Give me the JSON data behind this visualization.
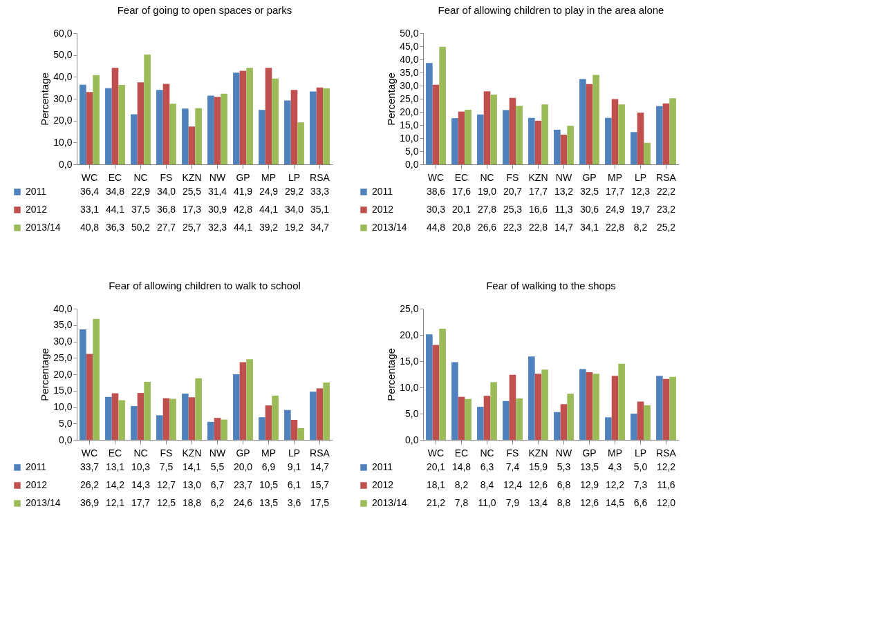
{
  "chart_data": [
    {
      "type": "bar",
      "title": "Fear of going to open spaces or parks",
      "ylabel": "Percentage",
      "categories": [
        "WC",
        "EC",
        "NC",
        "FS",
        "KZN",
        "NW",
        "GP",
        "MP",
        "LP",
        "RSA"
      ],
      "ylim": [
        0,
        60
      ],
      "yticks": [
        {
          "value": 0,
          "label": "0,0"
        },
        {
          "value": 10,
          "label": "10,0"
        },
        {
          "value": 20,
          "label": "20,0"
        },
        {
          "value": 30,
          "label": "30,0"
        },
        {
          "value": 40,
          "label": "40,0"
        },
        {
          "value": 50,
          "label": "50,0"
        },
        {
          "value": 60,
          "label": "60,0"
        }
      ],
      "grid": false,
      "legend": "bottom",
      "series": [
        {
          "name": "2011",
          "color": "#4f81bd",
          "values": [
            36.4,
            34.8,
            22.9,
            34.0,
            25.5,
            31.4,
            41.9,
            24.9,
            29.2,
            33.3
          ],
          "value_labels": [
            "36,4",
            "34,8",
            "22,9",
            "34,0",
            "25,5",
            "31,4",
            "41,9",
            "24,9",
            "29,2",
            "33,3"
          ]
        },
        {
          "name": "2012",
          "color": "#c0504d",
          "values": [
            33.1,
            44.1,
            37.5,
            36.8,
            17.3,
            30.9,
            42.8,
            44.1,
            34.0,
            35.1
          ],
          "value_labels": [
            "33,1",
            "44,1",
            "37,5",
            "36,8",
            "17,3",
            "30,9",
            "42,8",
            "44,1",
            "34,0",
            "35,1"
          ]
        },
        {
          "name": "2013/14",
          "color": "#9bbb59",
          "values": [
            40.8,
            36.3,
            50.2,
            27.7,
            25.7,
            32.3,
            44.1,
            39.2,
            19.2,
            34.7
          ],
          "value_labels": [
            "40,8",
            "36,3",
            "50,2",
            "27,7",
            "25,7",
            "32,3",
            "44,1",
            "39,2",
            "19,2",
            "34,7"
          ]
        }
      ]
    },
    {
      "type": "bar",
      "title": "Fear of  allowing children to play in the area alone",
      "ylabel": "Percentage",
      "categories": [
        "WC",
        "EC",
        "NC",
        "FS",
        "KZN",
        "NW",
        "GP",
        "MP",
        "LP",
        "RSA"
      ],
      "ylim": [
        0,
        50
      ],
      "yticks": [
        {
          "value": 0,
          "label": "0,0"
        },
        {
          "value": 5,
          "label": "5,0"
        },
        {
          "value": 10,
          "label": "10,0"
        },
        {
          "value": 15,
          "label": "15,0"
        },
        {
          "value": 20,
          "label": "20,0"
        },
        {
          "value": 25,
          "label": "25,0"
        },
        {
          "value": 30,
          "label": "30,0"
        },
        {
          "value": 35,
          "label": "35,0"
        },
        {
          "value": 40,
          "label": "40,0"
        },
        {
          "value": 45,
          "label": "45,0"
        },
        {
          "value": 50,
          "label": "50,0"
        }
      ],
      "grid": false,
      "legend": "bottom",
      "series": [
        {
          "name": "2011",
          "color": "#4f81bd",
          "values": [
            38.6,
            17.6,
            19.0,
            20.7,
            17.7,
            13.2,
            32.5,
            17.7,
            12.3,
            22.2
          ],
          "value_labels": [
            "38,6",
            "17,6",
            "19,0",
            "20,7",
            "17,7",
            "13,2",
            "32,5",
            "17,7",
            "12,3",
            "22,2"
          ]
        },
        {
          "name": "2012",
          "color": "#c0504d",
          "values": [
            30.3,
            20.1,
            27.8,
            25.3,
            16.6,
            11.3,
            30.6,
            24.9,
            19.7,
            23.2
          ],
          "value_labels": [
            "30,3",
            "20,1",
            "27,8",
            "25,3",
            "16,6",
            "11,3",
            "30,6",
            "24,9",
            "19,7",
            "23,2"
          ]
        },
        {
          "name": "2013/14",
          "color": "#9bbb59",
          "values": [
            44.8,
            20.8,
            26.6,
            22.3,
            22.8,
            14.7,
            34.1,
            22.8,
            8.2,
            25.2
          ],
          "value_labels": [
            "44,8",
            "20,8",
            "26,6",
            "22,3",
            "22,8",
            "14,7",
            "34,1",
            "22,8",
            "8,2",
            "25,2"
          ]
        }
      ]
    },
    {
      "type": "bar",
      "title": "Fear of allowing children to walk to school",
      "ylabel": "Percentage",
      "categories": [
        "WC",
        "EC",
        "NC",
        "FS",
        "KZN",
        "NW",
        "GP",
        "MP",
        "LP",
        "RSA"
      ],
      "ylim": [
        0,
        40
      ],
      "yticks": [
        {
          "value": 0,
          "label": "0,0"
        },
        {
          "value": 5,
          "label": "5,0"
        },
        {
          "value": 10,
          "label": "10,0"
        },
        {
          "value": 15,
          "label": "15,0"
        },
        {
          "value": 20,
          "label": "20,0"
        },
        {
          "value": 25,
          "label": "25,0"
        },
        {
          "value": 30,
          "label": "30,0"
        },
        {
          "value": 35,
          "label": "35,0"
        },
        {
          "value": 40,
          "label": "40,0"
        }
      ],
      "grid": false,
      "legend": "bottom",
      "series": [
        {
          "name": "2011",
          "color": "#4f81bd",
          "values": [
            33.7,
            13.1,
            10.3,
            7.5,
            14.1,
            5.5,
            20.0,
            6.9,
            9.1,
            14.7
          ],
          "value_labels": [
            "33,7",
            "13,1",
            "10,3",
            "7,5",
            "14,1",
            "5,5",
            "20,0",
            "6,9",
            "9,1",
            "14,7"
          ]
        },
        {
          "name": "2012",
          "color": "#c0504d",
          "values": [
            26.2,
            14.2,
            14.3,
            12.7,
            13.0,
            6.7,
            23.7,
            10.5,
            6.1,
            15.7
          ],
          "value_labels": [
            "26,2",
            "14,2",
            "14,3",
            "12,7",
            "13,0",
            "6,7",
            "23,7",
            "10,5",
            "6,1",
            "15,7"
          ]
        },
        {
          "name": "2013/14",
          "color": "#9bbb59",
          "values": [
            36.9,
            12.1,
            17.7,
            12.5,
            18.8,
            6.2,
            24.6,
            13.5,
            3.6,
            17.5
          ],
          "value_labels": [
            "36,9",
            "12,1",
            "17,7",
            "12,5",
            "18,8",
            "6,2",
            "24,6",
            "13,5",
            "3,6",
            "17,5"
          ]
        }
      ]
    },
    {
      "type": "bar",
      "title": "Fear of walking to the shops",
      "ylabel": "Percentage",
      "categories": [
        "WC",
        "EC",
        "NC",
        "FS",
        "KZN",
        "NW",
        "GP",
        "MP",
        "LP",
        "RSA"
      ],
      "ylim": [
        0,
        25
      ],
      "yticks": [
        {
          "value": 0,
          "label": "0,0"
        },
        {
          "value": 5,
          "label": "5,0"
        },
        {
          "value": 10,
          "label": "10,0"
        },
        {
          "value": 15,
          "label": "15,0"
        },
        {
          "value": 20,
          "label": "20,0"
        },
        {
          "value": 25,
          "label": "25,0"
        }
      ],
      "grid": false,
      "legend": "bottom",
      "series": [
        {
          "name": "2011",
          "color": "#4f81bd",
          "values": [
            20.1,
            14.8,
            6.3,
            7.4,
            15.9,
            5.3,
            13.5,
            4.3,
            5.0,
            12.2
          ],
          "value_labels": [
            "20,1",
            "14,8",
            "6,3",
            "7,4",
            "15,9",
            "5,3",
            "13,5",
            "4,3",
            "5,0",
            "12,2"
          ]
        },
        {
          "name": "2012",
          "color": "#c0504d",
          "values": [
            18.1,
            8.2,
            8.4,
            12.4,
            12.6,
            6.8,
            12.9,
            12.2,
            7.3,
            11.6
          ],
          "value_labels": [
            "18,1",
            "8,2",
            "8,4",
            "12,4",
            "12,6",
            "6,8",
            "12,9",
            "12,2",
            "7,3",
            "11,6"
          ]
        },
        {
          "name": "2013/14",
          "color": "#9bbb59",
          "values": [
            21.2,
            7.8,
            11.0,
            7.9,
            13.4,
            8.8,
            12.6,
            14.5,
            6.6,
            12.0
          ],
          "value_labels": [
            "21,2",
            "7,8",
            "11,0",
            "7,9",
            "13,4",
            "8,8",
            "12,6",
            "14,5",
            "6,6",
            "12,0"
          ]
        }
      ]
    }
  ]
}
